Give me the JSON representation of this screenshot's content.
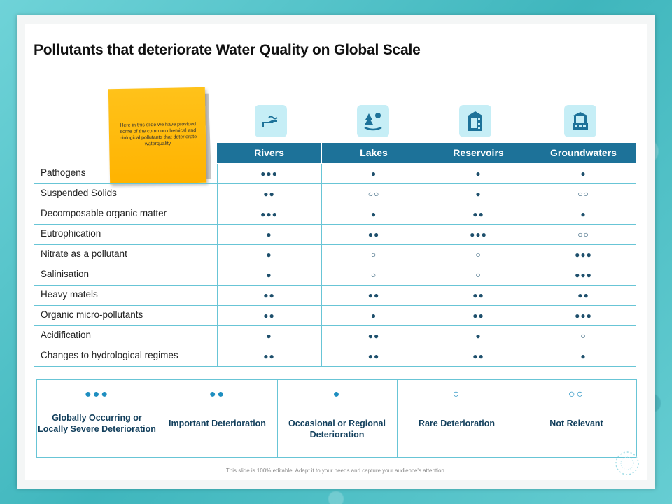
{
  "title": "Pollutants that deteriorate Water Quality on Global Scale",
  "sticky_note": "Here in this slide we have provided some of the common chemical and biological pollutants that deteriorate waterquality.",
  "columns": [
    {
      "label": "Rivers",
      "icon": "river-hand-icon"
    },
    {
      "label": "Lakes",
      "icon": "lake-tree-icon"
    },
    {
      "label": "Reservoirs",
      "icon": "reservoir-tank-icon"
    },
    {
      "label": "Groundwaters",
      "icon": "well-icon"
    }
  ],
  "rows": [
    {
      "label": "Pathogens",
      "values": [
        "●●●",
        "●",
        "●",
        "●"
      ]
    },
    {
      "label": "Suspended Solids",
      "values": [
        "●●",
        "○○",
        "●",
        "○○"
      ]
    },
    {
      "label": "Decomposable organic matter",
      "values": [
        "●●●",
        "●",
        "●●",
        "●"
      ]
    },
    {
      "label": "Eutrophication",
      "values": [
        "●",
        "●●",
        "●●●",
        "○○"
      ]
    },
    {
      "label": "Nitrate as a pollutant",
      "values": [
        "●",
        "○",
        "○",
        "●●●"
      ]
    },
    {
      "label": "Salinisation",
      "values": [
        "●",
        "○",
        "○",
        "●●●"
      ]
    },
    {
      "label": "Heavy matels",
      "values": [
        "●●",
        "●●",
        "●●",
        "●●"
      ]
    },
    {
      "label": "Organic micro-pollutants",
      "values": [
        "●●",
        "●",
        "●●",
        "●●●"
      ]
    },
    {
      "label": "Acidification",
      "values": [
        "●",
        "●●",
        "●",
        "○"
      ]
    },
    {
      "label": "Changes to hydrological regimes",
      "values": [
        "●●",
        "●●",
        "●●",
        "●"
      ]
    }
  ],
  "legend": [
    {
      "symbol": "●●●",
      "label": "Globally Occurring or Locally Severe Deterioration"
    },
    {
      "symbol": "●●",
      "label": "Important Deterioration"
    },
    {
      "symbol": "●",
      "label": "Occasional or Regional Deterioration"
    },
    {
      "symbol": "○",
      "label": "Rare Deterioration"
    },
    {
      "symbol": "○○",
      "label": "Not Relevant"
    }
  ],
  "footer": "This slide is 100% editable. Adapt it to your needs and capture your audience's attention.",
  "colors": {
    "header": "#1d7299",
    "accent": "#1e8ec0",
    "sticky": "#ffb300",
    "rule": "#68c5d6"
  }
}
